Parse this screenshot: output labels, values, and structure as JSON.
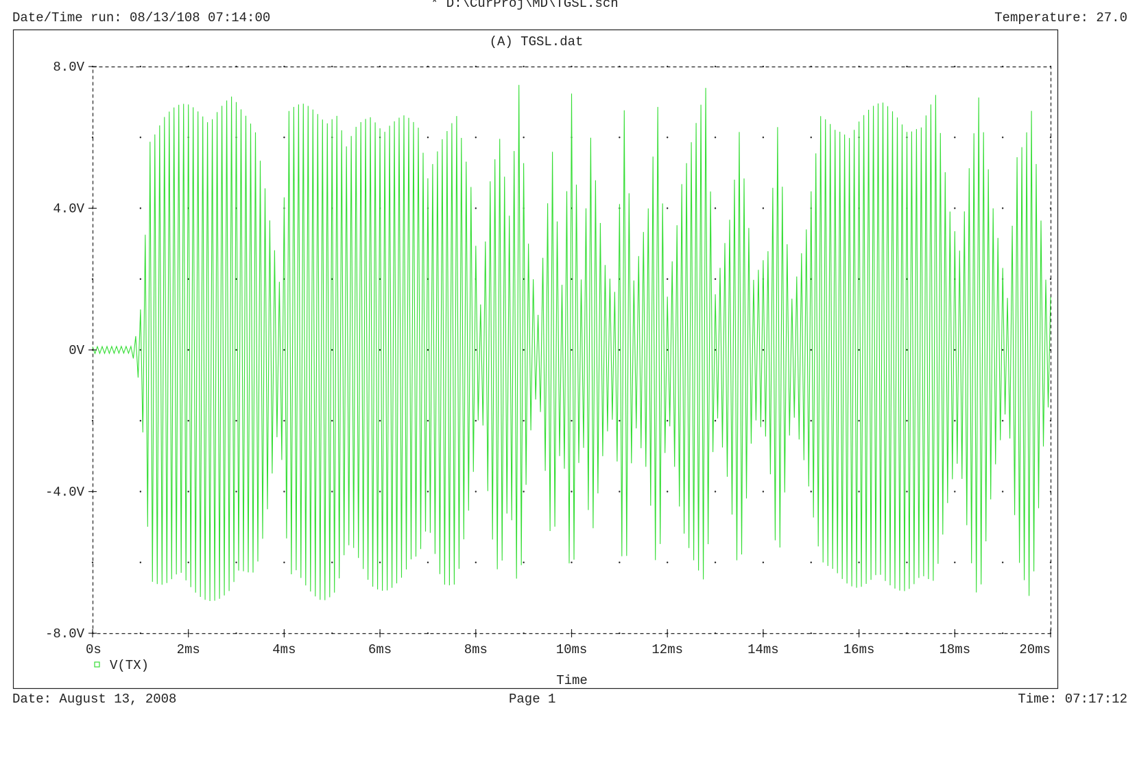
{
  "header": {
    "file_path": "* D:\\CurProj\\MD\\TGSL.sch",
    "datetime_run": "Date/Time run: 08/13/108 07:14:00",
    "temperature": "Temperature: 27.0"
  },
  "footer": {
    "date": "Date: August 13, 2008",
    "page": "Page 1",
    "time": "Time: 07:17:12"
  },
  "colors": {
    "trace": "#33dd33",
    "frame": "#222222"
  },
  "chart_data": {
    "type": "line",
    "title": "(A) TGSL.dat",
    "xlabel": "Time",
    "ylabel": "",
    "xlim": [
      0,
      20
    ],
    "x_unit": "ms",
    "ylim": [
      -8,
      8
    ],
    "grid": "dotted",
    "legend_position": "bottom-left",
    "x_ticks": [
      0,
      2,
      4,
      6,
      8,
      10,
      12,
      14,
      16,
      18,
      20
    ],
    "x_tick_labels": [
      "0s",
      "2ms",
      "4ms",
      "6ms",
      "8ms",
      "10ms",
      "12ms",
      "14ms",
      "16ms",
      "18ms",
      "20ms"
    ],
    "y_ticks": [
      8,
      4,
      0,
      -4,
      -8
    ],
    "y_tick_labels": [
      "8.0V",
      "4.0V",
      "0V",
      "-4.0V",
      "-8.0V"
    ],
    "series": [
      {
        "name": "V(TX)",
        "style": "oscillating waveform, carrier approx. 10 kHz; values below are the peak envelope (volts) versus time (ms)",
        "envelope": {
          "t": [
            0,
            0.8,
            0.9,
            1.0,
            1.1,
            1.2,
            1.5,
            2.0,
            2.5,
            2.9,
            3.1,
            3.4,
            3.6,
            3.8,
            3.9,
            4.1,
            4.4,
            4.8,
            5.1,
            5.3,
            5.5,
            5.8,
            6.2,
            6.5,
            6.8,
            7.0,
            7.3,
            7.6,
            7.9,
            8.1,
            8.3,
            8.5,
            8.7,
            8.9,
            9.1,
            9.3,
            9.6,
            9.8,
            10.0,
            10.2,
            10.4,
            10.7,
            10.9,
            11.1,
            11.3,
            11.6,
            11.8,
            12.0,
            12.3,
            12.5,
            12.8,
            13.0,
            13.3,
            13.5,
            13.8,
            14.1,
            14.3,
            14.6,
            14.9,
            15.2,
            15.5,
            16.0,
            16.5,
            17.0,
            17.3,
            17.6,
            17.9,
            18.1,
            18.3,
            18.5,
            18.8,
            19.1,
            19.3,
            19.6,
            19.9,
            20.0
          ],
          "peak": [
            0.1,
            0.1,
            0.4,
            1.2,
            3.5,
            6.5,
            6.8,
            7.0,
            7.1,
            7.2,
            6.8,
            6.4,
            5.0,
            3.0,
            2.0,
            6.8,
            7.0,
            7.1,
            6.9,
            5.8,
            6.3,
            6.8,
            6.8,
            6.7,
            6.3,
            5.0,
            6.6,
            6.8,
            4.6,
            1.3,
            5.0,
            6.6,
            4.0,
            7.6,
            3.0,
            1.0,
            6.0,
            2.0,
            7.5,
            2.0,
            6.0,
            2.5,
            1.8,
            7.2,
            2.0,
            4.0,
            7.0,
            1.6,
            5.0,
            6.0,
            7.4,
            1.6,
            4.0,
            6.6,
            2.0,
            2.8,
            6.5,
            1.6,
            3.5,
            6.6,
            6.4,
            6.8,
            7.0,
            6.8,
            6.5,
            7.2,
            4.0,
            3.0,
            5.6,
            7.4,
            4.0,
            1.5,
            5.8,
            7.2,
            2.0,
            1.5
          ]
        }
      }
    ]
  }
}
